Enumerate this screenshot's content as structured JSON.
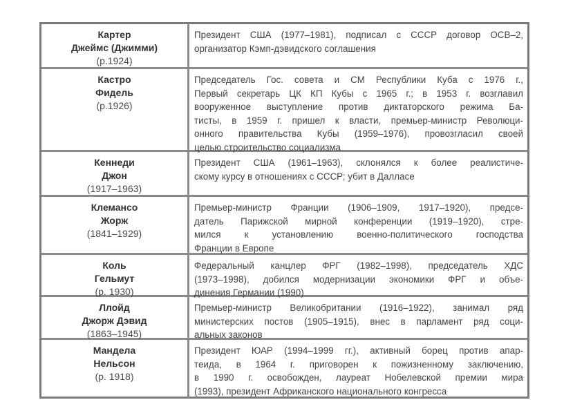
{
  "rows": [
    {
      "name": [
        "Картер",
        "Джеймс (Джимми)"
      ],
      "dates": "(р.1924)",
      "lines": [
        "Президент США (1977–1981), подписал с СССР договор ОСВ–2,",
        "организатор Кэмп-дэвидского соглашения"
      ]
    },
    {
      "name": [
        "Кастро",
        "Фидель"
      ],
      "dates": "(р.1926)",
      "lines": [
        "Председатель Гос. совета и СМ Республики Куба с 1976 г.,",
        "Первый секретарь ЦК КП Кубы с 1965 г.; в 1953 г. возглавил",
        "вооруженное выступление против диктаторского режима Ба-",
        "тисты, в 1959 г. пришел к власти, премьер-министр Революци-",
        "онного правительства Кубы (1959–1976), провозгласил своей",
        "целью строительство социализма"
      ]
    },
    {
      "name": [
        "Кеннеди",
        "Джон"
      ],
      "dates": "(1917–1963)",
      "lines": [
        "Президент США (1961–1963), склонялся к более реалистиче-",
        "скому курсу в отношениях с СССР; убит в Далласе"
      ]
    },
    {
      "name": [
        "Клемансо",
        "Жорж"
      ],
      "dates": "(1841–1929)",
      "lines": [
        "Премьер-министр Франции (1906–1909, 1917–1920), предсе-",
        "датель Парижской мирной конференции (1919–1920), стре-",
        "мился к установлению военно-политического господства",
        "Франции в Европе"
      ]
    },
    {
      "name": [
        "Коль",
        "Гельмут"
      ],
      "dates": "(р. 1930)",
      "lines": [
        "Федеральный канцлер ФРГ (1982–1998), председатель ХДС",
        "(1973–1998), добился модернизации экономики ФРГ и объе-",
        "динения Германии (1990)"
      ]
    },
    {
      "name": [
        "Ллойд",
        "Джорж Дэвид"
      ],
      "dates": "(1863–1945)",
      "lines": [
        "Премьер-министр Великобритании (1916–1922), занимал ряд",
        "министерских постов (1905–1915), внес в парламент ряд соци-",
        "альных законов"
      ]
    },
    {
      "name": [
        "Мандела",
        "Нельсон"
      ],
      "dates": "(р. 1918)",
      "lines": [
        "Президент ЮАР (1994–1999 гг.), активный борец против апар-",
        "теида, в 1964 г. приговорен к пожизненному заключению,",
        "в 1990 г. освобожден, лауреат Нобелевской премии мира",
        "(1993), президент Африканского национального конгресса"
      ]
    }
  ]
}
